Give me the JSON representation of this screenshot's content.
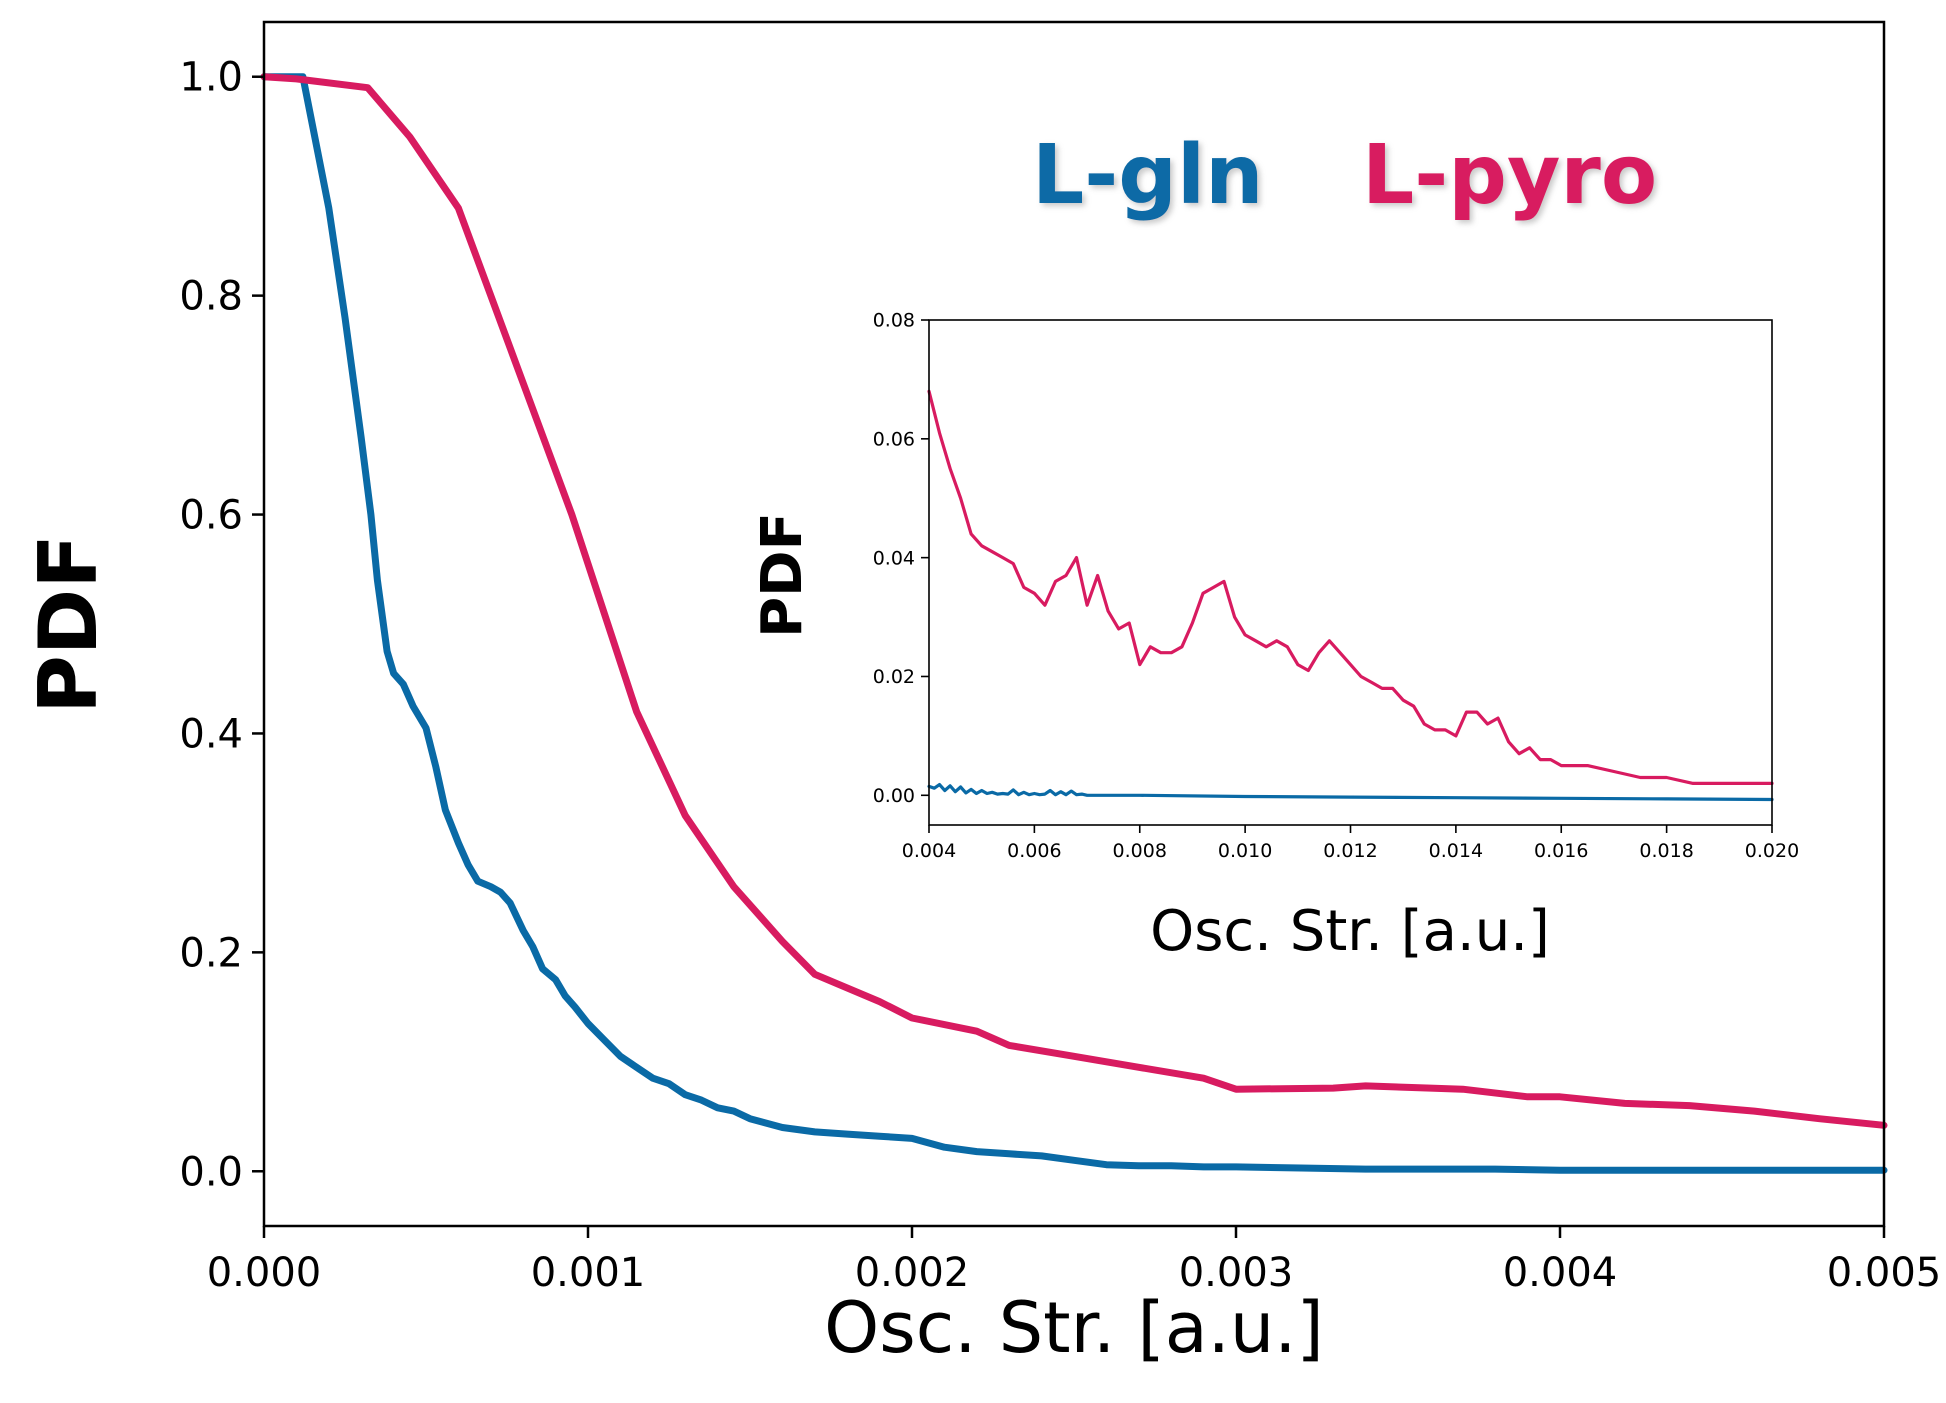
{
  "colors": {
    "l_gln": "#0a6aa6",
    "l_pyro": "#d81b60",
    "axis": "#000000"
  },
  "chart_data": [
    {
      "type": "line",
      "id": "main",
      "xlabel": "Osc. Str. [a.u.]",
      "ylabel": "PDF",
      "xlim": [
        0,
        0.005
      ],
      "ylim": [
        -0.05,
        1.05
      ],
      "xticks": [
        0.0,
        0.001,
        0.002,
        0.003,
        0.004,
        0.005
      ],
      "xtick_labels": [
        "0.000",
        "0.001",
        "0.002",
        "0.003",
        "0.004",
        "0.005"
      ],
      "yticks": [
        0.0,
        0.2,
        0.4,
        0.6,
        0.8,
        1.0
      ],
      "ytick_labels": [
        "0.0",
        "0.2",
        "0.4",
        "0.6",
        "0.8",
        "1.0"
      ],
      "legend": {
        "placement": "top-right",
        "entries": [
          "L-gln",
          "L-pyro"
        ]
      },
      "series": [
        {
          "name": "L-gln",
          "color": "#0a6aa6",
          "x": [
            0.0,
            0.00012,
            0.0002,
            0.00025,
            0.0003,
            0.00033,
            0.00035,
            0.00038,
            0.0004,
            0.00043,
            0.00046,
            0.0005,
            0.00053,
            0.00056,
            0.0006,
            0.00063,
            0.00066,
            0.0007,
            0.00073,
            0.00076,
            0.0008,
            0.00083,
            0.00086,
            0.0009,
            0.00093,
            0.00096,
            0.001,
            0.00105,
            0.0011,
            0.00115,
            0.0012,
            0.00125,
            0.0013,
            0.00135,
            0.0014,
            0.00145,
            0.0015,
            0.0016,
            0.0017,
            0.0018,
            0.0019,
            0.002,
            0.0021,
            0.0022,
            0.0023,
            0.0024,
            0.0025,
            0.0026,
            0.0027,
            0.0028,
            0.0029,
            0.003,
            0.0032,
            0.0034,
            0.0036,
            0.0038,
            0.004,
            0.0042,
            0.0044,
            0.0046,
            0.0048,
            0.005
          ],
          "y": [
            1.0,
            1.0,
            0.88,
            0.78,
            0.67,
            0.6,
            0.54,
            0.475,
            0.455,
            0.445,
            0.425,
            0.405,
            0.37,
            0.33,
            0.3,
            0.28,
            0.265,
            0.26,
            0.255,
            0.245,
            0.22,
            0.205,
            0.185,
            0.175,
            0.16,
            0.15,
            0.135,
            0.12,
            0.105,
            0.095,
            0.085,
            0.08,
            0.07,
            0.065,
            0.058,
            0.055,
            0.048,
            0.04,
            0.036,
            0.034,
            0.032,
            0.03,
            0.022,
            0.018,
            0.016,
            0.014,
            0.01,
            0.006,
            0.005,
            0.005,
            0.004,
            0.004,
            0.003,
            0.002,
            0.002,
            0.002,
            0.001,
            0.001,
            0.001,
            0.001,
            0.001,
            0.001
          ]
        },
        {
          "name": "L-pyro",
          "color": "#d81b60",
          "x": [
            0.0,
            0.0001,
            0.00032,
            0.00045,
            0.0006,
            0.0008,
            0.00095,
            0.001,
            0.00115,
            0.0013,
            0.00145,
            0.0016,
            0.0017,
            0.0019,
            0.002,
            0.0022,
            0.0023,
            0.0025,
            0.0027,
            0.0029,
            0.003,
            0.0033,
            0.0034,
            0.0036,
            0.0037,
            0.0039,
            0.004,
            0.0042,
            0.0044,
            0.0046,
            0.0048,
            0.005
          ],
          "y": [
            1.0,
            0.998,
            0.99,
            0.945,
            0.88,
            0.72,
            0.6,
            0.555,
            0.42,
            0.325,
            0.26,
            0.21,
            0.18,
            0.155,
            0.14,
            0.128,
            0.115,
            0.105,
            0.095,
            0.085,
            0.075,
            0.076,
            0.078,
            0.076,
            0.075,
            0.068,
            0.068,
            0.062,
            0.06,
            0.055,
            0.048,
            0.042
          ]
        }
      ]
    },
    {
      "type": "line",
      "id": "inset",
      "xlabel": "Osc. Str. [a.u.]",
      "ylabel": "PDF",
      "xlim": [
        0.004,
        0.02
      ],
      "ylim": [
        -0.005,
        0.08
      ],
      "xticks": [
        0.004,
        0.006,
        0.008,
        0.01,
        0.012,
        0.014,
        0.016,
        0.018,
        0.02
      ],
      "xtick_labels": [
        "0.004",
        "0.006",
        "0.008",
        "0.010",
        "0.012",
        "0.014",
        "0.016",
        "0.018",
        "0.020"
      ],
      "yticks": [
        0.0,
        0.02,
        0.04,
        0.06,
        0.08
      ],
      "ytick_labels": [
        "0.00",
        "0.02",
        "0.04",
        "0.06",
        "0.08"
      ],
      "series": [
        {
          "name": "L-gln",
          "color": "#0a6aa6",
          "x": [
            0.004,
            0.0041,
            0.0042,
            0.0043,
            0.0044,
            0.0045,
            0.0046,
            0.0047,
            0.0048,
            0.0049,
            0.005,
            0.0051,
            0.0052,
            0.0053,
            0.0054,
            0.0055,
            0.0056,
            0.0057,
            0.0058,
            0.0059,
            0.006,
            0.0061,
            0.0062,
            0.0063,
            0.0064,
            0.0065,
            0.0066,
            0.0067,
            0.0068,
            0.0069,
            0.007,
            0.008,
            0.01,
            0.012,
            0.014,
            0.016,
            0.018,
            0.02
          ],
          "y": [
            0.0015,
            0.0012,
            0.0018,
            0.0008,
            0.0016,
            0.0006,
            0.0014,
            0.0004,
            0.001,
            0.0003,
            0.0008,
            0.0003,
            0.0005,
            0.0002,
            0.0003,
            0.0002,
            0.0009,
            0.0001,
            0.0005,
            0.0001,
            0.0003,
            0.0001,
            0.0002,
            0.0008,
            0.0001,
            0.0006,
            0.0001,
            0.0007,
            0.0001,
            0.0002,
            0.0,
            0.0,
            -0.0002,
            -0.0003,
            -0.0004,
            -0.0005,
            -0.0006,
            -0.0007
          ]
        },
        {
          "name": "L-pyro",
          "color": "#d81b60",
          "x": [
            0.004,
            0.0042,
            0.0044,
            0.0046,
            0.0048,
            0.005,
            0.0052,
            0.0054,
            0.0056,
            0.0058,
            0.006,
            0.0062,
            0.0064,
            0.0066,
            0.0068,
            0.007,
            0.0072,
            0.0074,
            0.0076,
            0.0078,
            0.008,
            0.0082,
            0.0084,
            0.0086,
            0.0088,
            0.009,
            0.0092,
            0.0094,
            0.0096,
            0.0098,
            0.01,
            0.0102,
            0.0104,
            0.0106,
            0.0108,
            0.011,
            0.0112,
            0.0114,
            0.0116,
            0.0118,
            0.012,
            0.0122,
            0.0124,
            0.0126,
            0.0128,
            0.013,
            0.0132,
            0.0134,
            0.0136,
            0.0138,
            0.014,
            0.0142,
            0.0144,
            0.0146,
            0.0148,
            0.015,
            0.0152,
            0.0154,
            0.0156,
            0.0158,
            0.016,
            0.0165,
            0.017,
            0.0175,
            0.018,
            0.0185,
            0.019,
            0.0195,
            0.02
          ],
          "y": [
            0.068,
            0.061,
            0.055,
            0.05,
            0.044,
            0.042,
            0.041,
            0.04,
            0.039,
            0.035,
            0.034,
            0.032,
            0.036,
            0.037,
            0.04,
            0.032,
            0.037,
            0.031,
            0.028,
            0.029,
            0.022,
            0.025,
            0.024,
            0.024,
            0.025,
            0.029,
            0.034,
            0.035,
            0.036,
            0.03,
            0.027,
            0.026,
            0.025,
            0.026,
            0.025,
            0.022,
            0.021,
            0.024,
            0.026,
            0.024,
            0.022,
            0.02,
            0.019,
            0.018,
            0.018,
            0.016,
            0.015,
            0.012,
            0.011,
            0.011,
            0.01,
            0.014,
            0.014,
            0.012,
            0.013,
            0.009,
            0.007,
            0.008,
            0.006,
            0.006,
            0.005,
            0.005,
            0.004,
            0.003,
            0.003,
            0.002,
            0.002,
            0.002,
            0.002
          ]
        }
      ]
    }
  ]
}
